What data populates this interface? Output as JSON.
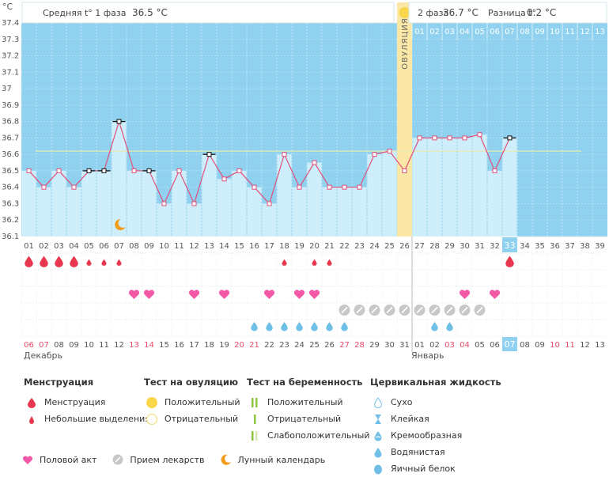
{
  "header": {
    "phase1_label": "Средняя t° 1 фаза",
    "phase1_value": "36.5 °C",
    "phase2_label": "2 фаза",
    "phase2_value": "36.7 °C",
    "diff_label": "Разница t°",
    "diff_value": "0.2 °C"
  },
  "ovulation_label": "ОВУЛЯЦИЯ",
  "chart_data": {
    "type": "line",
    "ylabel": "°C",
    "ylim": [
      36.1,
      37.4
    ],
    "yticks": [
      "36.1",
      "36.2",
      "36.3",
      "36.4",
      "36.5",
      "36.6",
      "36.7",
      "36.8",
      "36.9",
      "37",
      "37.1",
      "37.2",
      "37.3",
      "37.4"
    ],
    "cycle_days": [
      "01",
      "02",
      "03",
      "04",
      "05",
      "06",
      "07",
      "08",
      "09",
      "10",
      "11",
      "12",
      "13",
      "14",
      "15",
      "16",
      "17",
      "18",
      "19",
      "20",
      "21",
      "22",
      "23",
      "24",
      "25",
      "26",
      "27",
      "28",
      "29",
      "30",
      "31",
      "32",
      "33",
      "34",
      "35",
      "36",
      "37",
      "38",
      "39"
    ],
    "top_days": [
      "01",
      "02",
      "03",
      "04",
      "05",
      "06",
      "07",
      "08",
      "09",
      "10",
      "11",
      "12",
      "13"
    ],
    "temperatures": [
      36.5,
      36.4,
      36.5,
      36.4,
      36.5,
      36.5,
      36.8,
      36.5,
      36.5,
      36.3,
      36.5,
      36.3,
      36.6,
      36.45,
      36.5,
      36.4,
      36.3,
      36.6,
      36.4,
      36.55,
      36.4,
      36.4,
      36.4,
      36.6,
      36.62,
      36.5,
      36.7,
      36.7,
      36.7,
      36.7,
      36.72,
      36.5,
      36.7
    ],
    "black_marker_days": [
      5,
      6,
      7,
      9,
      13,
      33
    ],
    "average_line": 36.62,
    "ovulation_day": 26,
    "current_day": 33,
    "dates": [
      "06",
      "07",
      "08",
      "09",
      "10",
      "11",
      "12",
      "13",
      "14",
      "15",
      "16",
      "17",
      "18",
      "19",
      "20",
      "21",
      "22",
      "23",
      "24",
      "25",
      "26",
      "27",
      "28",
      "29",
      "30",
      "31",
      "01",
      "02",
      "03",
      "04",
      "05",
      "06",
      "07",
      "08",
      "09",
      "10",
      "11",
      "12",
      "13"
    ],
    "date_colors": [
      "#e64a6a",
      "#e64a6a",
      "#555",
      "#555",
      "#555",
      "#555",
      "#555",
      "#e64a6a",
      "#e64a6a",
      "#555",
      "#555",
      "#555",
      "#555",
      "#555",
      "#e64a6a",
      "#e64a6a",
      "#555",
      "#555",
      "#555",
      "#555",
      "#555",
      "#e64a6a",
      "#e64a6a",
      "#555",
      "#555",
      "#555",
      "#555",
      "#555",
      "#e64a6a",
      "#e64a6a",
      "#555",
      "#555",
      "#555",
      "#555",
      "#555",
      "#e64a6a",
      "#e64a6a",
      "#555",
      "#555"
    ],
    "month1": "Декабрь",
    "month2": "Январь",
    "menstruation_big_days": [
      1,
      2,
      3,
      4,
      33
    ],
    "menstruation_small_days": [
      5,
      6,
      7,
      18,
      20,
      21
    ],
    "intercourse_days": [
      8,
      9,
      12,
      14,
      17,
      19,
      20,
      30,
      32
    ],
    "medication_days": [
      22,
      23,
      24,
      25,
      26,
      27,
      28,
      29,
      30,
      31
    ],
    "mucus_days": [
      16,
      17,
      18,
      19,
      20,
      21,
      22,
      28,
      29
    ],
    "moon_day": 7
  },
  "legend": {
    "menstruation": {
      "title": "Менструация",
      "items": [
        "Менструация",
        "Небольшие выделения"
      ]
    },
    "ovulation_test": {
      "title": "Тест на овуляцию",
      "items": [
        "Положительный",
        "Отрицательный"
      ]
    },
    "pregnancy_test": {
      "title": "Тест на беременность",
      "items": [
        "Положительный",
        "Отрицательный",
        "Слабоположительный"
      ]
    },
    "cervical": {
      "title": "Цервикальная жидкость",
      "items": [
        "Сухо",
        "Клейкая",
        "Кремообразная",
        "Водянистая",
        "Яичный белок"
      ]
    },
    "bottom": [
      "Половой акт",
      "Прием лекарств",
      "Лунный календарь"
    ]
  },
  "colors": {
    "plot_bg": "#8fd1ee",
    "bar": "#cfeefb",
    "line": "#e05079",
    "ovulation": "#fbe8a6",
    "ovulation_dot": "#f9d64a",
    "current": "#8fd1ee",
    "drop": "#e8374f",
    "heart": "#f25aa8",
    "pill": "#c8c8c8",
    "mucus": "#6fbfe6",
    "moon": "#f39c1a"
  }
}
